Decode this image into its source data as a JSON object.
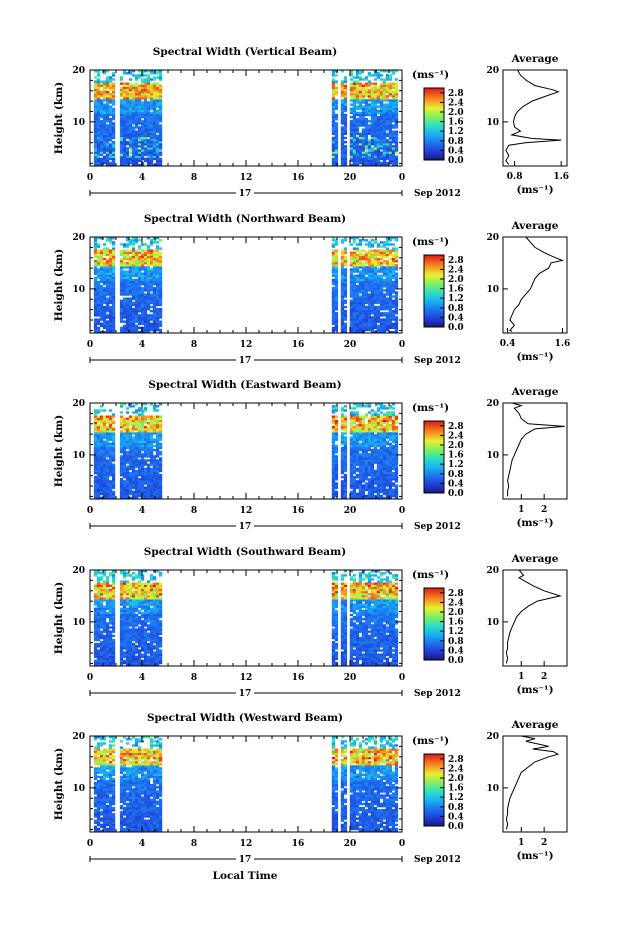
{
  "figure": {
    "xlabel": "Local Time",
    "date_label": "Sep 2012",
    "day_label": "17",
    "avg_title": "Average",
    "colorbar_unit": "(ms⁻¹)"
  },
  "chart_data": [
    {
      "type": "heatmap",
      "title": "Spectral Width (Vertical Beam)",
      "ylabel": "Height (km)",
      "xlabel": "",
      "x_ticks": [
        "0",
        "4",
        "8",
        "12",
        "16",
        "20",
        "0"
      ],
      "y_ticks": [
        "20",
        "10"
      ],
      "ylim": [
        1.5,
        20
      ],
      "xlim_hours": [
        0,
        24
      ],
      "data_periods_hours": [
        [
          0.3,
          1.7
        ],
        [
          2.3,
          5.5
        ],
        [
          18.6,
          23.5
        ]
      ],
      "colorbar": {
        "unit": "(ms⁻¹)",
        "ticks": [
          "2.8",
          "2.4",
          "2.0",
          "1.6",
          "1.2",
          "0.8",
          "0.4",
          "0.0"
        ],
        "range": [
          0,
          3.0
        ]
      },
      "average_profile": {
        "title": "Average",
        "xlabel": "(ms⁻¹)",
        "x_ticks": [
          "0.8",
          "1.6"
        ],
        "xlim": [
          0.6,
          1.7
        ],
        "points": [
          [
            0.85,
            20
          ],
          [
            0.9,
            19
          ],
          [
            1.0,
            18
          ],
          [
            1.15,
            17
          ],
          [
            1.45,
            16.2
          ],
          [
            1.55,
            15.8
          ],
          [
            1.35,
            15
          ],
          [
            1.1,
            14
          ],
          [
            0.95,
            13
          ],
          [
            0.85,
            12
          ],
          [
            0.8,
            11
          ],
          [
            0.78,
            10
          ],
          [
            0.8,
            9
          ],
          [
            0.9,
            8.2
          ],
          [
            0.75,
            7.5
          ],
          [
            1.1,
            6.8
          ],
          [
            1.6,
            6.5
          ],
          [
            1.0,
            6
          ],
          [
            0.7,
            5.5
          ],
          [
            0.65,
            4.5
          ],
          [
            0.7,
            3.5
          ],
          [
            0.65,
            2.5
          ],
          [
            0.7,
            1.8
          ]
        ]
      }
    },
    {
      "type": "heatmap",
      "title": "Spectral Width (Northward Beam)",
      "ylabel": "Height (km)",
      "xlabel": "",
      "x_ticks": [
        "0",
        "4",
        "8",
        "12",
        "16",
        "20",
        "0"
      ],
      "y_ticks": [
        "20",
        "10"
      ],
      "ylim": [
        1.5,
        20
      ],
      "xlim_hours": [
        0,
        24
      ],
      "data_periods_hours": [
        [
          0.3,
          1.7
        ],
        [
          2.3,
          5.5
        ],
        [
          18.6,
          23.5
        ]
      ],
      "colorbar": {
        "unit": "(ms⁻¹)",
        "ticks": [
          "2.8",
          "2.4",
          "2.0",
          "1.6",
          "1.2",
          "0.8",
          "0.4",
          "0.0"
        ],
        "range": [
          0,
          3.0
        ]
      },
      "average_profile": {
        "title": "Average",
        "xlabel": "(ms⁻¹)",
        "x_ticks": [
          "0.4",
          "1.6"
        ],
        "xlim": [
          0.3,
          1.7
        ],
        "points": [
          [
            0.8,
            20
          ],
          [
            0.9,
            19
          ],
          [
            1.0,
            18
          ],
          [
            1.2,
            17
          ],
          [
            1.45,
            16
          ],
          [
            1.6,
            15.5
          ],
          [
            1.35,
            15
          ],
          [
            1.3,
            14
          ],
          [
            1.1,
            13
          ],
          [
            1.0,
            12
          ],
          [
            0.95,
            11
          ],
          [
            0.9,
            10
          ],
          [
            0.8,
            9
          ],
          [
            0.7,
            8
          ],
          [
            0.65,
            7
          ],
          [
            0.55,
            6
          ],
          [
            0.5,
            5
          ],
          [
            0.45,
            4
          ],
          [
            0.55,
            3
          ],
          [
            0.45,
            2
          ],
          [
            0.5,
            1.8
          ]
        ]
      }
    },
    {
      "type": "heatmap",
      "title": "Spectral Width (Eastward Beam)",
      "ylabel": "Height (km)",
      "xlabel": "",
      "x_ticks": [
        "0",
        "4",
        "8",
        "12",
        "16",
        "20",
        "0"
      ],
      "y_ticks": [
        "20",
        "10"
      ],
      "ylim": [
        1.5,
        20
      ],
      "xlim_hours": [
        0,
        24
      ],
      "data_periods_hours": [
        [
          0.3,
          1.7
        ],
        [
          2.3,
          5.5
        ],
        [
          18.6,
          23.5
        ]
      ],
      "colorbar": {
        "unit": "(ms⁻¹)",
        "ticks": [
          "2.8",
          "2.4",
          "2.0",
          "1.6",
          "1.2",
          "0.8",
          "0.4",
          "0.0"
        ],
        "range": [
          0,
          3.0
        ]
      },
      "average_profile": {
        "title": "Average",
        "xlabel": "(ms⁻¹)",
        "x_ticks": [
          "1",
          "2"
        ],
        "xlim": [
          0.2,
          3.0
        ],
        "points": [
          [
            0.6,
            20
          ],
          [
            1.0,
            19.5
          ],
          [
            0.7,
            19
          ],
          [
            0.9,
            18
          ],
          [
            1.0,
            17
          ],
          [
            1.3,
            16
          ],
          [
            2.9,
            15.5
          ],
          [
            1.6,
            15
          ],
          [
            1.2,
            14
          ],
          [
            1.0,
            13
          ],
          [
            0.9,
            12
          ],
          [
            0.8,
            11
          ],
          [
            0.7,
            10
          ],
          [
            0.6,
            9
          ],
          [
            0.55,
            8
          ],
          [
            0.5,
            7
          ],
          [
            0.45,
            6
          ],
          [
            0.4,
            5
          ],
          [
            0.45,
            4
          ],
          [
            0.4,
            3
          ],
          [
            0.4,
            2
          ]
        ]
      }
    },
    {
      "type": "heatmap",
      "title": "Spectral Width (Southward Beam)",
      "ylabel": "Height (km)",
      "xlabel": "",
      "x_ticks": [
        "0",
        "4",
        "8",
        "12",
        "16",
        "20",
        "0"
      ],
      "y_ticks": [
        "20",
        "10"
      ],
      "ylim": [
        1.5,
        20
      ],
      "xlim_hours": [
        0,
        24
      ],
      "data_periods_hours": [
        [
          0.3,
          1.7
        ],
        [
          2.3,
          5.5
        ],
        [
          18.6,
          23.5
        ]
      ],
      "colorbar": {
        "unit": "(ms⁻¹)",
        "ticks": [
          "2.8",
          "2.4",
          "2.0",
          "1.6",
          "1.2",
          "0.8",
          "0.4",
          "0.0"
        ],
        "range": [
          0,
          3.0
        ]
      },
      "average_profile": {
        "title": "Average",
        "xlabel": "(ms⁻¹)",
        "x_ticks": [
          "1",
          "2"
        ],
        "xlim": [
          0.2,
          3.0
        ],
        "points": [
          [
            0.9,
            20
          ],
          [
            1.1,
            19
          ],
          [
            0.9,
            18.5
          ],
          [
            1.5,
            17
          ],
          [
            2.0,
            16
          ],
          [
            2.7,
            15
          ],
          [
            2.2,
            14.5
          ],
          [
            1.7,
            14
          ],
          [
            1.3,
            13
          ],
          [
            1.0,
            12
          ],
          [
            0.8,
            11
          ],
          [
            0.7,
            10
          ],
          [
            0.6,
            9
          ],
          [
            0.5,
            8
          ],
          [
            0.45,
            7
          ],
          [
            0.4,
            6
          ],
          [
            0.4,
            5
          ],
          [
            0.35,
            4
          ],
          [
            0.4,
            3
          ],
          [
            0.35,
            2
          ]
        ]
      }
    },
    {
      "type": "heatmap",
      "title": "Spectral Width (Westward Beam)",
      "ylabel": "Height (km)",
      "xlabel": "Local Time",
      "x_ticks": [
        "0",
        "4",
        "8",
        "12",
        "16",
        "20",
        "0"
      ],
      "y_ticks": [
        "20",
        "10"
      ],
      "ylim": [
        1.5,
        20
      ],
      "xlim_hours": [
        0,
        24
      ],
      "data_periods_hours": [
        [
          0.3,
          1.7
        ],
        [
          2.3,
          5.5
        ],
        [
          18.6,
          23.5
        ]
      ],
      "colorbar": {
        "unit": "(ms⁻¹)",
        "ticks": [
          "2.8",
          "2.4",
          "2.0",
          "1.6",
          "1.2",
          "0.8",
          "0.4",
          "0.0"
        ],
        "range": [
          0,
          3.0
        ]
      },
      "average_profile": {
        "title": "Average",
        "xlabel": "(ms⁻¹)",
        "x_ticks": [
          "1",
          "2"
        ],
        "xlim": [
          0.2,
          3.0
        ],
        "points": [
          [
            1.0,
            20
          ],
          [
            1.6,
            19.5
          ],
          [
            1.2,
            19
          ],
          [
            2.2,
            18
          ],
          [
            1.5,
            17.5
          ],
          [
            2.4,
            17
          ],
          [
            2.6,
            16.5
          ],
          [
            2.2,
            16
          ],
          [
            1.6,
            15
          ],
          [
            1.3,
            14
          ],
          [
            1.0,
            13
          ],
          [
            0.9,
            12
          ],
          [
            0.8,
            11
          ],
          [
            0.7,
            10
          ],
          [
            0.6,
            9
          ],
          [
            0.5,
            8
          ],
          [
            0.45,
            7
          ],
          [
            0.4,
            6
          ],
          [
            0.4,
            5
          ],
          [
            0.35,
            4
          ],
          [
            0.4,
            3
          ],
          [
            0.35,
            2
          ]
        ]
      }
    }
  ]
}
